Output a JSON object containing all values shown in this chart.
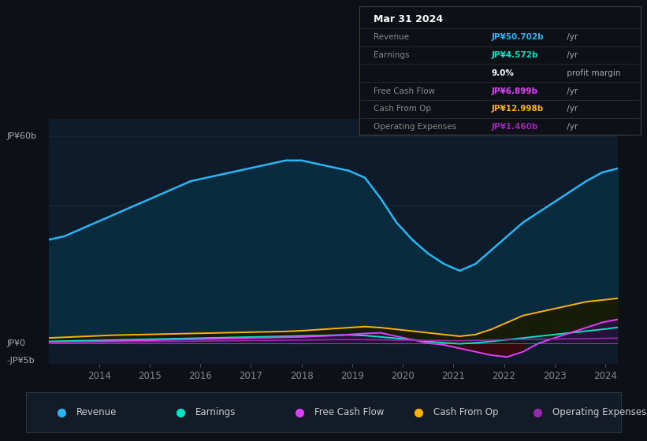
{
  "bg_color": "#0d1117",
  "plot_bg_color": "#0d1b2a",
  "colors": {
    "revenue": "#29b6f6",
    "earnings": "#00e5c3",
    "free_cash_flow": "#e040fb",
    "cash_from_op": "#ffb300",
    "operating_expenses": "#9c27b0",
    "revenue_fill": "#0a2a3d",
    "earnings_fill": "#0a2020",
    "cash_from_op_fill": "#1a1a00"
  },
  "legend": [
    {
      "label": "Revenue",
      "color": "#29b6f6"
    },
    {
      "label": "Earnings",
      "color": "#00e5c3"
    },
    {
      "label": "Free Cash Flow",
      "color": "#e040fb"
    },
    {
      "label": "Cash From Op",
      "color": "#ffb300"
    },
    {
      "label": "Operating Expenses",
      "color": "#9c27b0"
    }
  ],
  "ylabel_top": "JP¥60b",
  "ylabel_zero": "JP¥0",
  "ylabel_neg": "-JP¥5b",
  "year_ticks": [
    2014,
    2015,
    2016,
    2017,
    2018,
    2019,
    2020,
    2021,
    2022,
    2023,
    2024
  ],
  "ylim": [
    -6,
    65
  ],
  "revenue": [
    30,
    31,
    33,
    35,
    37,
    39,
    41,
    43,
    45,
    47,
    48,
    49,
    50,
    51,
    52,
    53,
    53,
    52,
    51,
    50,
    48,
    42,
    35,
    30,
    26,
    23,
    21,
    23,
    27,
    31,
    35,
    38,
    41,
    44,
    47,
    49.5,
    50.702
  ],
  "earnings": [
    0.5,
    0.6,
    0.7,
    0.8,
    0.9,
    1.0,
    1.1,
    1.2,
    1.3,
    1.4,
    1.5,
    1.6,
    1.7,
    1.8,
    1.9,
    2.0,
    2.1,
    2.2,
    2.3,
    2.4,
    2.2,
    1.8,
    1.4,
    1.0,
    0.5,
    0.1,
    -0.2,
    0.1,
    0.5,
    1.0,
    1.5,
    2.0,
    2.5,
    3.0,
    3.5,
    4.0,
    4.572
  ],
  "free_cash_flow": [
    0.2,
    0.3,
    0.4,
    0.5,
    0.6,
    0.7,
    0.8,
    0.9,
    1.0,
    1.1,
    1.2,
    1.3,
    1.4,
    1.5,
    1.6,
    1.7,
    1.8,
    2.0,
    2.2,
    2.5,
    2.8,
    3.0,
    2.0,
    1.0,
    0.0,
    -0.5,
    -1.5,
    -2.5,
    -3.5,
    -4.0,
    -2.5,
    0.0,
    1.5,
    3.0,
    4.5,
    6.0,
    6.899
  ],
  "cash_from_op": [
    1.5,
    1.7,
    1.9,
    2.1,
    2.3,
    2.4,
    2.5,
    2.6,
    2.7,
    2.8,
    2.9,
    3.0,
    3.1,
    3.2,
    3.3,
    3.4,
    3.6,
    3.9,
    4.2,
    4.5,
    4.8,
    4.5,
    4.0,
    3.5,
    3.0,
    2.5,
    2.0,
    2.5,
    4.0,
    6.0,
    8.0,
    9.0,
    10.0,
    11.0,
    12.0,
    12.5,
    12.998
  ],
  "operating_expenses": [
    0.1,
    0.15,
    0.2,
    0.25,
    0.3,
    0.35,
    0.4,
    0.45,
    0.5,
    0.55,
    0.6,
    0.65,
    0.7,
    0.75,
    0.8,
    0.85,
    0.9,
    0.95,
    1.0,
    1.05,
    1.0,
    0.95,
    0.9,
    0.85,
    0.8,
    0.75,
    0.7,
    0.8,
    0.9,
    1.0,
    1.1,
    1.15,
    1.2,
    1.25,
    1.3,
    1.38,
    1.46
  ],
  "info_box": {
    "title": "Mar 31 2024",
    "rows": [
      {
        "label": "Revenue",
        "value": "JP¥50.702b",
        "suffix": " /yr",
        "value_color": "#29b6f6"
      },
      {
        "label": "Earnings",
        "value": "JP¥4.572b",
        "suffix": " /yr",
        "value_color": "#00e5c3"
      },
      {
        "label": "",
        "value": "9.0%",
        "suffix": " profit margin",
        "value_color": "#ffffff"
      },
      {
        "label": "Free Cash Flow",
        "value": "JP¥6.899b",
        "suffix": " /yr",
        "value_color": "#e040fb"
      },
      {
        "label": "Cash From Op",
        "value": "JP¥12.998b",
        "suffix": " /yr",
        "value_color": "#ffb300"
      },
      {
        "label": "Operating Expenses",
        "value": "JP¥1.460b",
        "suffix": " /yr",
        "value_color": "#9c27b0"
      }
    ]
  }
}
